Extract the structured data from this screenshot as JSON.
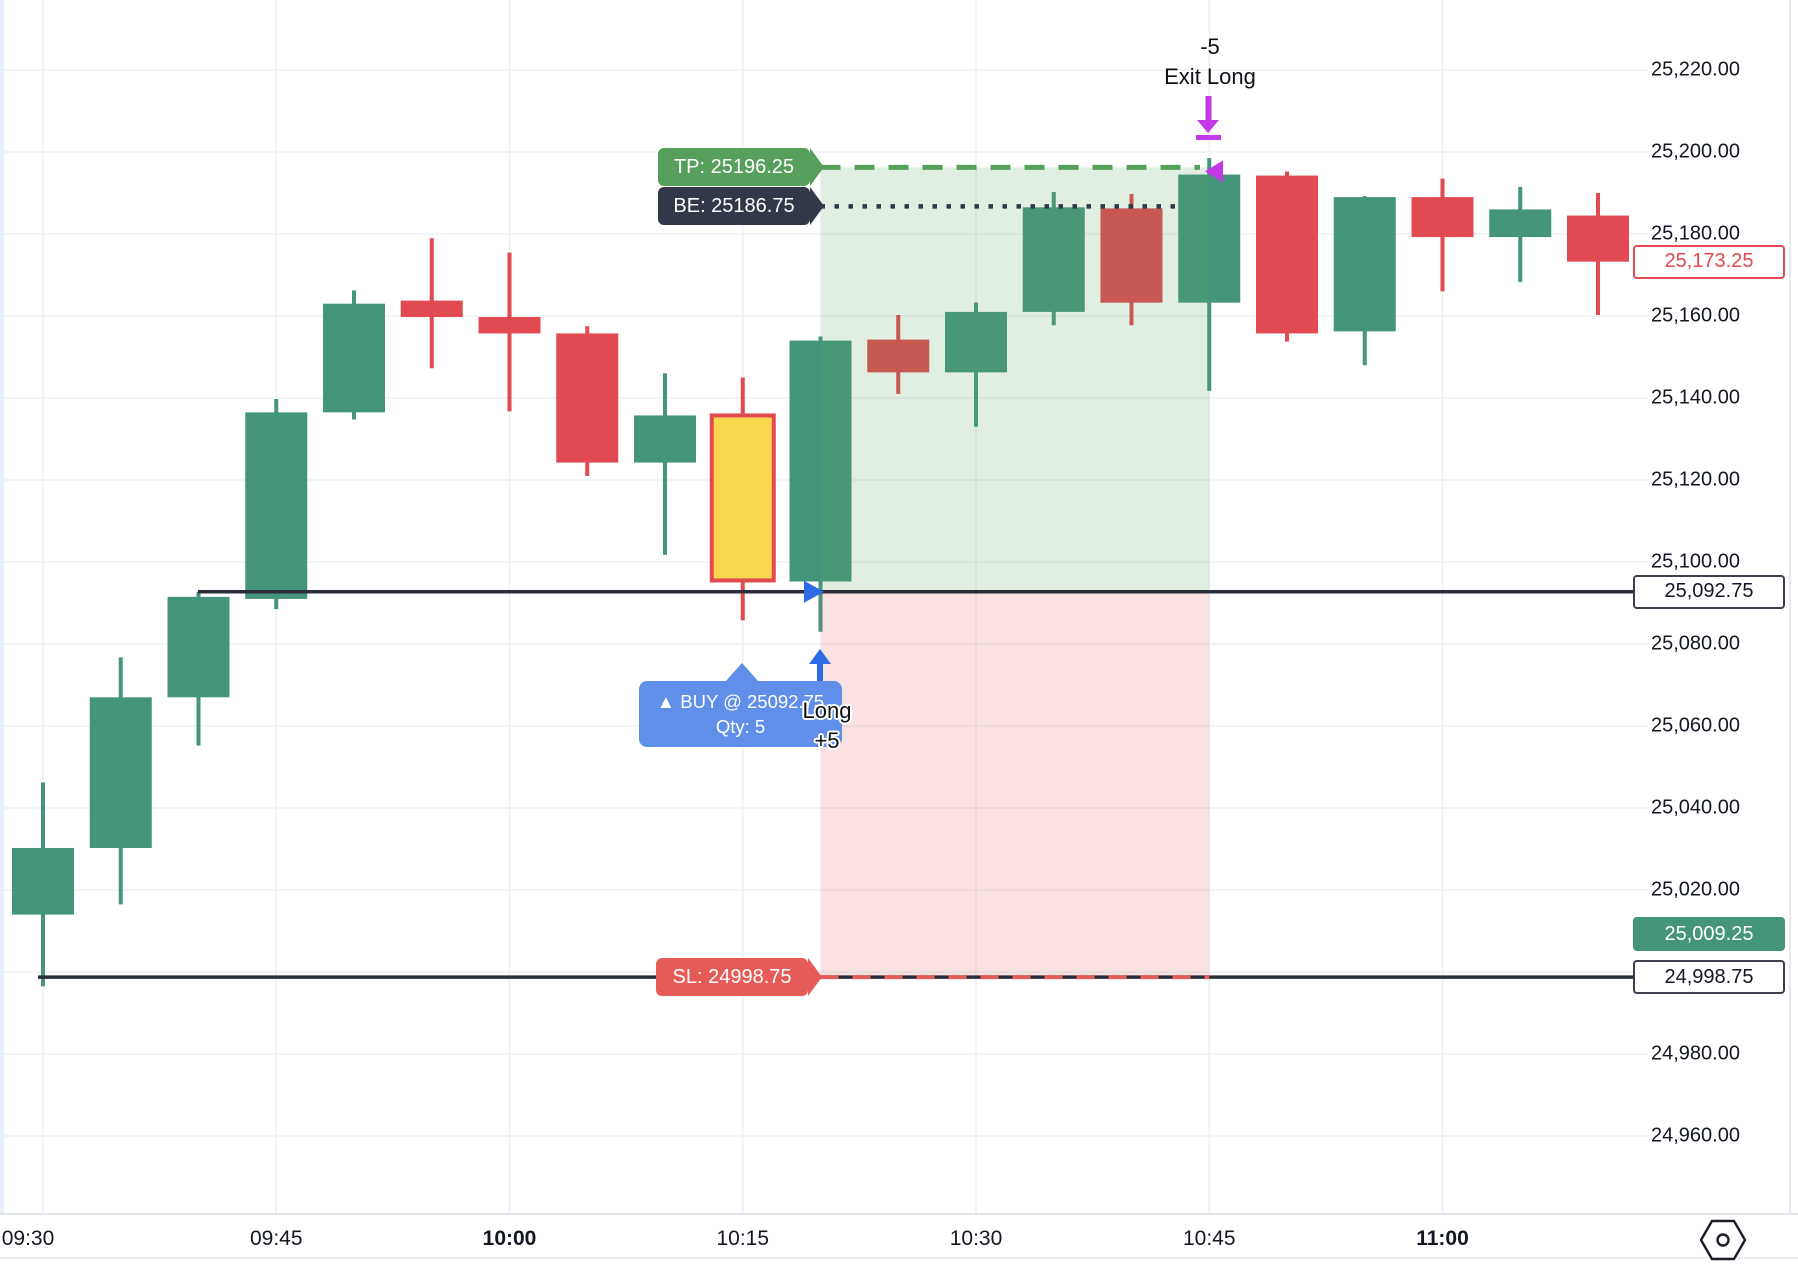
{
  "chart_data": {
    "type": "candlestick",
    "x_axis": {
      "ticks": [
        {
          "label": "09:30",
          "candle_index": 0,
          "bold": false
        },
        {
          "label": "09:45",
          "candle_index": 3,
          "bold": false
        },
        {
          "label": "10:00",
          "candle_index": 6,
          "bold": true
        },
        {
          "label": "10:15",
          "candle_index": 9,
          "bold": false
        },
        {
          "label": "10:30",
          "candle_index": 12,
          "bold": false
        },
        {
          "label": "10:45",
          "candle_index": 15,
          "bold": false
        },
        {
          "label": "11:00",
          "candle_index": 18,
          "bold": true
        }
      ]
    },
    "y_axis": {
      "min": 24960,
      "max": 25220,
      "step": 20,
      "grid": true,
      "labels": [
        {
          "text": "25,220.00",
          "price": 25220
        },
        {
          "text": "25,200.00",
          "price": 25200
        },
        {
          "text": "25,180.00",
          "price": 25180
        },
        {
          "text": "25,160.00",
          "price": 25160
        },
        {
          "text": "25,140.00",
          "price": 25140
        },
        {
          "text": "25,120.00",
          "price": 25120
        },
        {
          "text": "25,100.00",
          "price": 25100
        },
        {
          "text": "25,080.00",
          "price": 25080
        },
        {
          "text": "25,060.00",
          "price": 25060
        },
        {
          "text": "25,040.00",
          "price": 25040
        },
        {
          "text": "25,020.00",
          "price": 25020
        },
        {
          "text": "24,980.00",
          "price": 24980
        },
        {
          "text": "24,960.00",
          "price": 24960
        }
      ]
    },
    "candles": [
      {
        "time": "09:30",
        "open": 25014.0,
        "high": 25046.25,
        "low": 24996.5,
        "close": 25030.25
      },
      {
        "time": "09:35",
        "open": 25030.25,
        "high": 25076.75,
        "low": 25016.5,
        "close": 25067.0
      },
      {
        "time": "09:40",
        "open": 25067.0,
        "high": 25092.75,
        "low": 25055.25,
        "close": 25091.5
      },
      {
        "time": "09:45",
        "open": 25091.0,
        "high": 25139.75,
        "low": 25088.5,
        "close": 25136.5
      },
      {
        "time": "09:50",
        "open": 25136.5,
        "high": 25166.25,
        "low": 25134.75,
        "close": 25163.0
      },
      {
        "time": "09:55",
        "open": 25163.75,
        "high": 25179.0,
        "low": 25147.25,
        "close": 25159.75
      },
      {
        "time": "10:00",
        "open": 25159.75,
        "high": 25175.5,
        "low": 25136.75,
        "close": 25155.75
      },
      {
        "time": "10:05",
        "open": 25155.75,
        "high": 25157.5,
        "low": 25121.0,
        "close": 25124.25
      },
      {
        "time": "10:10",
        "open": 25124.25,
        "high": 25146.0,
        "low": 25101.75,
        "close": 25135.75
      },
      {
        "time": "10:15",
        "open": 25135.75,
        "high": 25145.0,
        "low": 25085.75,
        "close": 25095.5,
        "highlight": true
      },
      {
        "time": "10:20",
        "open": 25095.25,
        "high": 25155.0,
        "low": 25083.0,
        "close": 25154.0
      },
      {
        "time": "10:25",
        "open": 25154.25,
        "high": 25160.25,
        "low": 25141.0,
        "close": 25146.25
      },
      {
        "time": "10:30",
        "open": 25146.25,
        "high": 25163.25,
        "low": 25133.0,
        "close": 25161.0
      },
      {
        "time": "10:35",
        "open": 25161.0,
        "high": 25190.25,
        "low": 25157.75,
        "close": 25186.5
      },
      {
        "time": "10:40",
        "open": 25186.25,
        "high": 25189.75,
        "low": 25157.75,
        "close": 25163.25
      },
      {
        "time": "10:45",
        "open": 25163.25,
        "high": 25198.5,
        "low": 25141.75,
        "close": 25194.5
      },
      {
        "time": "10:50",
        "open": 25194.25,
        "high": 25195.25,
        "low": 25153.75,
        "close": 25155.75
      },
      {
        "time": "10:55",
        "open": 25156.25,
        "high": 25189.25,
        "low": 25148.0,
        "close": 25189.0
      },
      {
        "time": "11:00",
        "open": 25189.0,
        "high": 25193.5,
        "low": 25166.0,
        "close": 25179.25
      },
      {
        "time": "11:05",
        "open": 25179.25,
        "high": 25191.5,
        "low": 25168.25,
        "close": 25186.0
      },
      {
        "time": "11:10",
        "open": 25184.5,
        "high": 25190.0,
        "low": 25160.25,
        "close": 25173.25
      }
    ],
    "orders": {
      "take_profit": {
        "label": "TP: 25196.25",
        "price": 25196.25
      },
      "break_even": {
        "label": "BE: 25186.75",
        "price": 25186.75
      },
      "stop_loss": {
        "label": "SL: 24998.75",
        "price": 24998.75
      },
      "entry": {
        "price": 25092.75
      }
    },
    "price_badges": [
      {
        "name": "current-price-badge",
        "text": "25,173.25",
        "price": 25173.25,
        "style": "outline-red"
      },
      {
        "name": "entry-price-badge",
        "text": "25,092.75",
        "price": 25092.75,
        "style": "outline-dark"
      },
      {
        "name": "mark-price-badge",
        "text": "25,009.25",
        "price": 25009.25,
        "style": "fill-green"
      },
      {
        "name": "stop-price-badge",
        "text": "24,998.75",
        "price": 24998.75,
        "style": "outline-dark"
      }
    ],
    "trade_markers": {
      "buy_tooltip": {
        "line1": "▲ BUY @ 25092.75",
        "line2": "Qty: 5"
      },
      "entry_label": {
        "line1": "Long",
        "line2": "+5"
      },
      "exit_label": {
        "line1": "-5",
        "line2": "Exit Long"
      },
      "entry_candle_index": 10,
      "exit_candle_index": 15
    },
    "zones": {
      "profit": {
        "from_price": 25196.25,
        "to_price": 25092.75
      },
      "loss": {
        "from_price": 25092.75,
        "to_price": 24998.75
      }
    },
    "colors": {
      "up": "#45957c",
      "down": "#e04a50",
      "signal_fill": "#f9d74d",
      "signal_border": "#e04a50",
      "tp_green": "#57a05c",
      "be_dark": "#323848",
      "sl_red": "#e65b57",
      "entry_blue": "#5f8fe8",
      "marker_blue": "#2f6be8",
      "exit_purple": "#c438e8",
      "line_dark": "#2a2e39",
      "profit_zone": "rgba(87,160,92,0.18)",
      "loss_zone": "rgba(224,74,80,0.16)",
      "axis_text": "#131722"
    },
    "icons": {
      "price_scale_settings": "hexagon-circle-icon"
    }
  }
}
